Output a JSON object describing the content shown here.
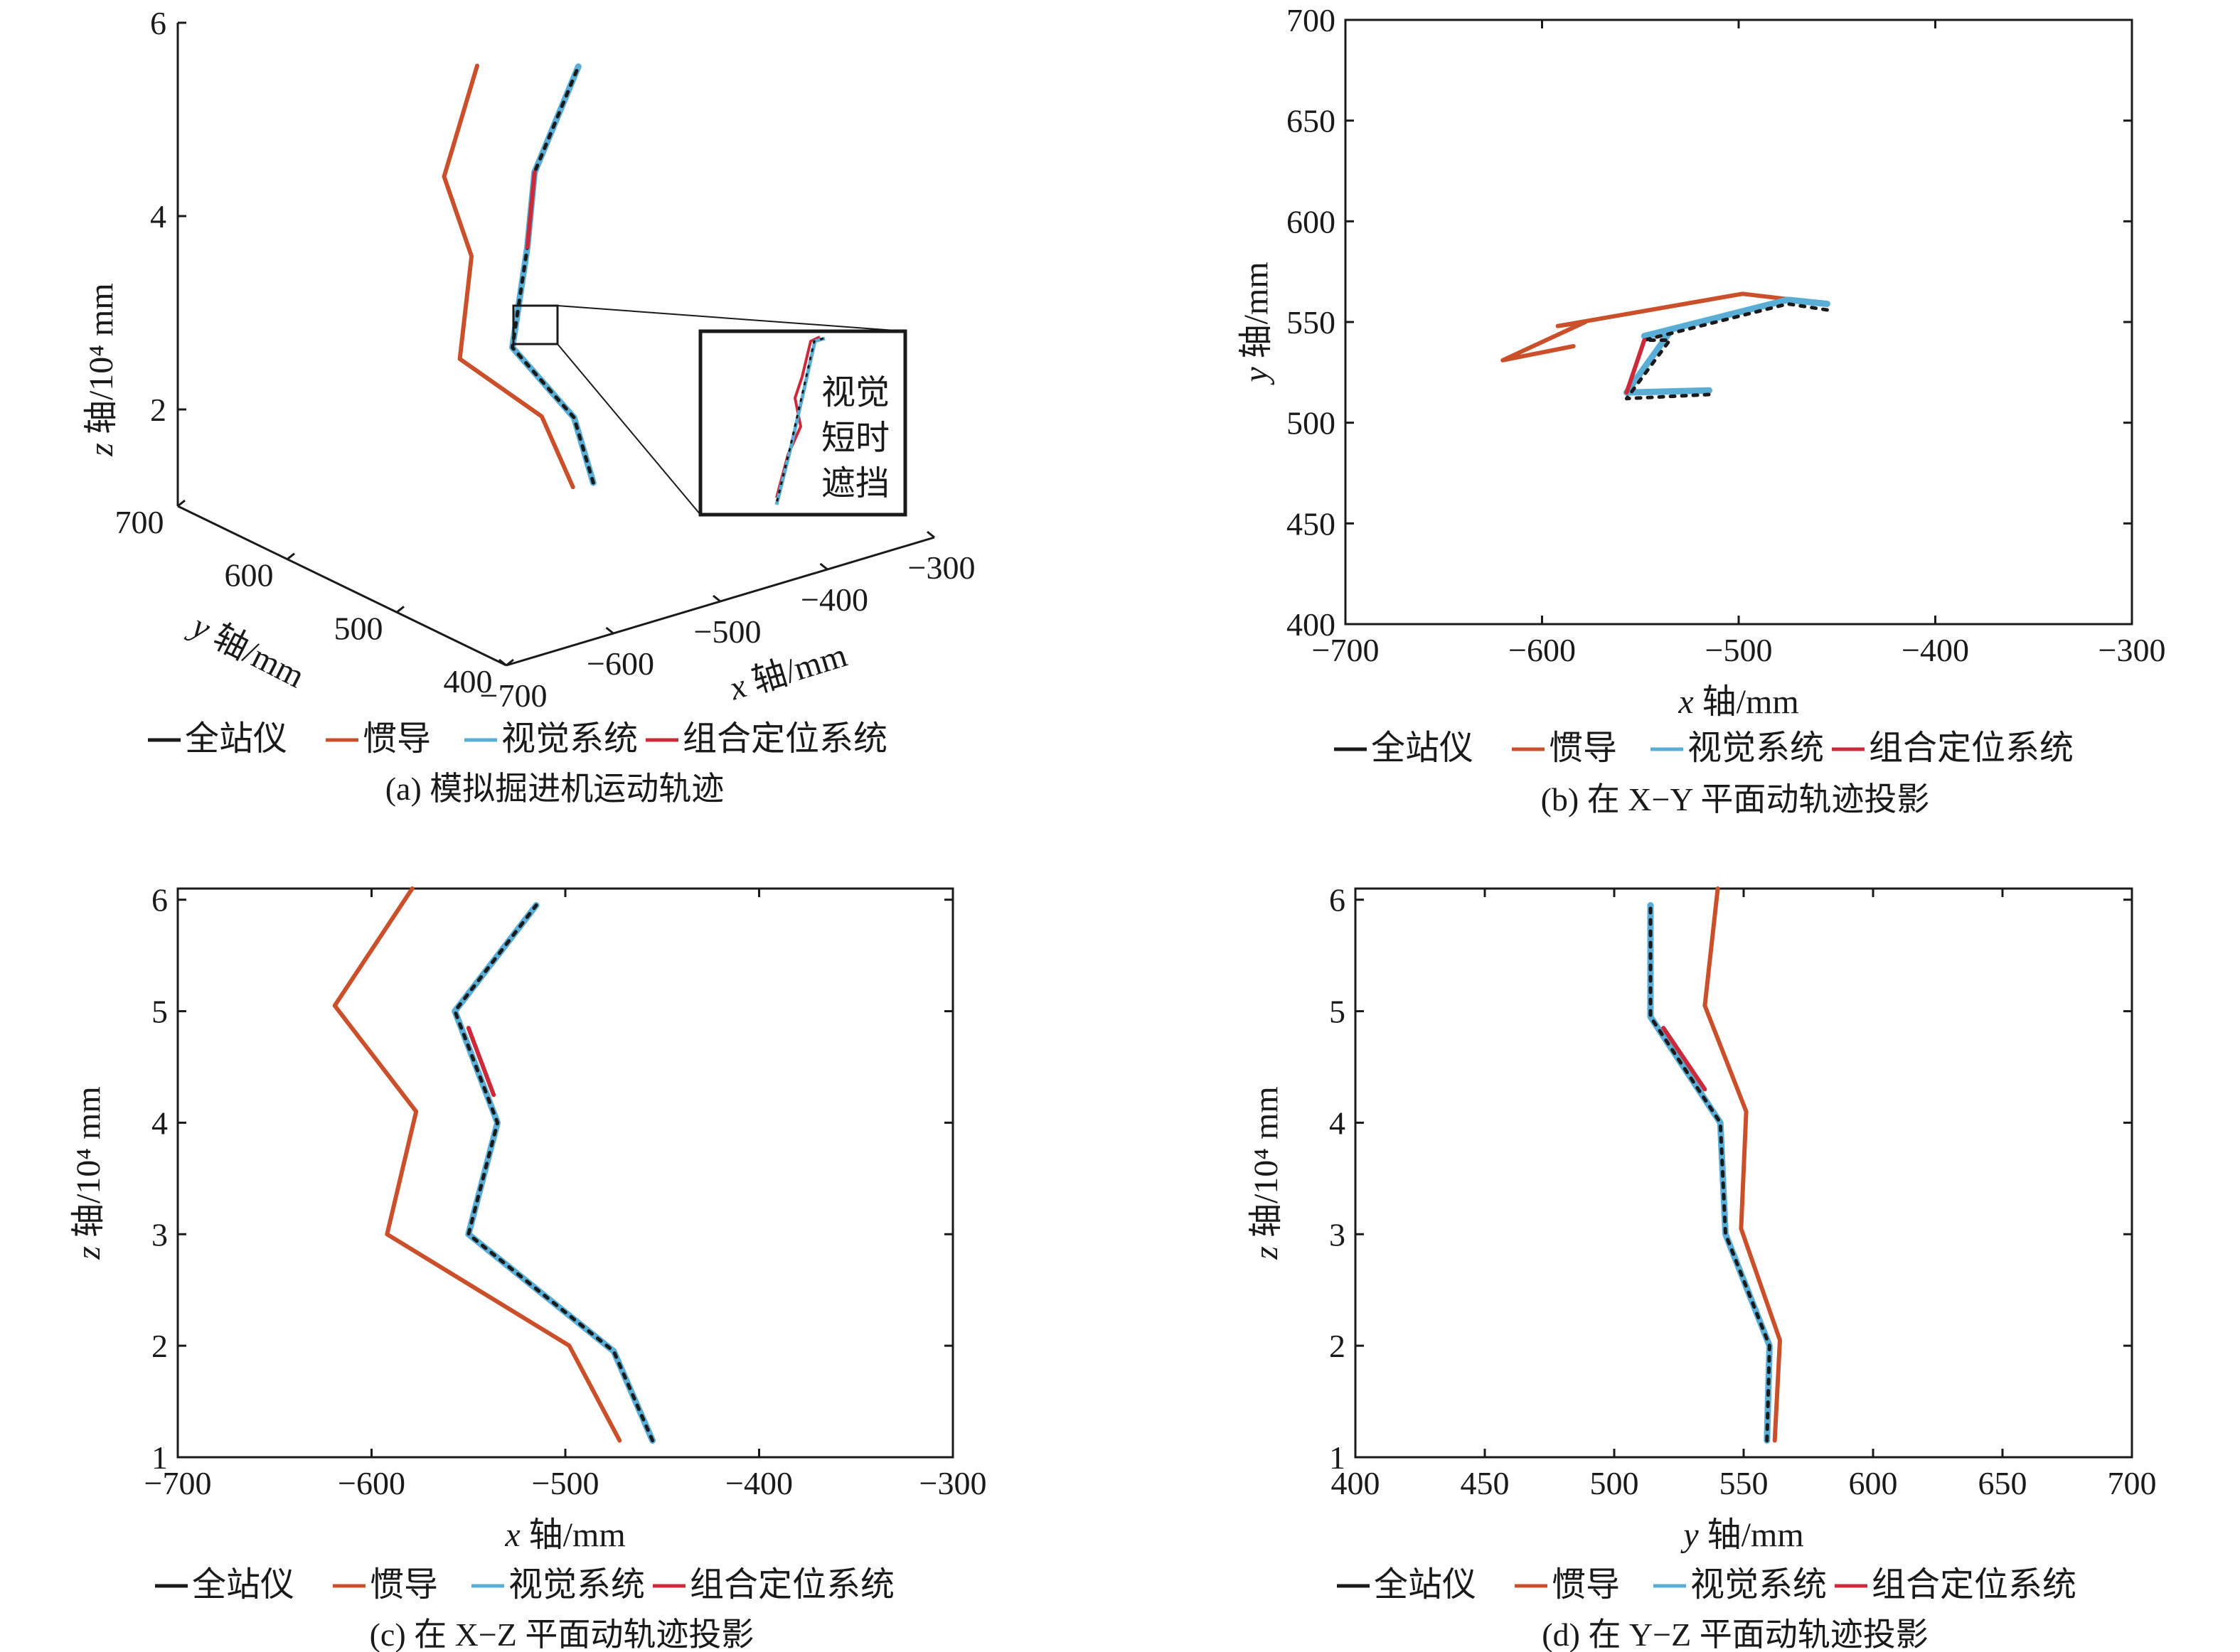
{
  "legend": [
    "全站仪",
    "惯导",
    "视觉系统",
    "组合定位系统"
  ],
  "colors": {
    "total_station": "#1a1a1a",
    "ins": "#c9502a",
    "vision": "#5aaed6",
    "integrated": "#cc2a3a"
  },
  "inset_note": [
    "视觉",
    "短时",
    "遮挡"
  ],
  "chart_data": [
    {
      "id": "a",
      "type": "line",
      "caption": "(a) 模拟掘进机运动轨迹",
      "xlabel": "x 轴/mm",
      "ylabel": "y 轴/mm",
      "zlabel": "z 轴/10⁴ mm",
      "xlim": [
        -700,
        -300
      ],
      "ylim": [
        400,
        700
      ],
      "zlim": [
        1,
        6
      ],
      "xticks": [
        "−700",
        "−600",
        "−500",
        "−400",
        "−300"
      ],
      "yticks": [
        "400",
        "500",
        "600",
        "700"
      ],
      "zticks": [
        "2",
        "4",
        "6"
      ],
      "series": [
        {
          "name": "全站仪",
          "x": [
            -455,
            -475,
            -548,
            -535,
            -557,
            -515
          ],
          "y": [
            560,
            558,
            543,
            542,
            514,
            515
          ],
          "z": [
            1.2,
            1.95,
            3.0,
            4.0,
            5.0,
            5.95
          ]
        },
        {
          "name": "惯导",
          "x": [
            -472,
            -498,
            -592,
            -578,
            -620,
            -584
          ],
          "y": [
            562,
            565,
            548,
            551,
            535,
            540
          ],
          "z": [
            1.2,
            2.0,
            3.0,
            4.0,
            5.05,
            6.05
          ]
        },
        {
          "name": "视觉系统",
          "x": [
            -455,
            -475,
            -548,
            -535,
            -557,
            -515
          ],
          "y": [
            560,
            558,
            543,
            542,
            514,
            515
          ],
          "z": [
            1.2,
            1.95,
            3.0,
            4.0,
            5.0,
            5.95
          ]
        },
        {
          "name": "组合定位系统",
          "x": [
            -535,
            -557
          ],
          "y": [
            542,
            514
          ],
          "z": [
            4.0,
            5.0
          ]
        }
      ]
    },
    {
      "id": "b",
      "type": "line",
      "caption": "(b) 在 X−Y 平面动轨迹投影",
      "xlabel": "x 轴/mm",
      "ylabel": "y 轴/mm",
      "xlim": [
        -700,
        -300
      ],
      "ylim": [
        400,
        700
      ],
      "xticks": [
        "−700",
        "−600",
        "−500",
        "−400",
        "−300"
      ],
      "yticks": [
        "400",
        "450",
        "500",
        "550",
        "600",
        "650",
        "700"
      ],
      "series": [
        {
          "name": "全站仪",
          "x": [
            -455,
            -475,
            -548,
            -535,
            -557,
            -515
          ],
          "y": [
            556,
            559,
            541,
            541,
            512,
            514
          ]
        },
        {
          "name": "惯导",
          "x": [
            -472,
            -498,
            -592,
            -578,
            -620,
            -584
          ],
          "y": [
            561,
            564,
            548,
            550,
            531,
            538
          ]
        },
        {
          "name": "视觉系统",
          "x": [
            -455,
            -475,
            -548,
            -535,
            -557,
            -515
          ],
          "y": [
            559,
            561,
            543,
            545,
            515,
            516
          ]
        },
        {
          "name": "组合定位系统",
          "x": [
            -548,
            -557
          ],
          "y": [
            541,
            515
          ]
        }
      ]
    },
    {
      "id": "c",
      "type": "line",
      "caption": "(c) 在 X−Z 平面动轨迹投影",
      "xlabel": "x 轴/mm",
      "ylabel": "z 轴/10⁴ mm",
      "xlim": [
        -700,
        -300
      ],
      "ylim": [
        1,
        6.1
      ],
      "xticks": [
        "−700",
        "−600",
        "−500",
        "−400",
        "−300"
      ],
      "yticks": [
        "1",
        "2",
        "3",
        "4",
        "5",
        "6"
      ],
      "series": [
        {
          "name": "全站仪",
          "x": [
            -455,
            -475,
            -550,
            -535,
            -557,
            -515
          ],
          "y": [
            1.15,
            1.95,
            3.0,
            4.0,
            5.0,
            5.95
          ]
        },
        {
          "name": "惯导",
          "x": [
            -472,
            -498,
            -592,
            -577,
            -619,
            -579
          ],
          "y": [
            1.15,
            2.0,
            3.0,
            4.1,
            5.05,
            6.1
          ]
        },
        {
          "name": "视觉系统",
          "x": [
            -455,
            -475,
            -550,
            -535,
            -557,
            -515
          ],
          "y": [
            1.15,
            1.95,
            3.0,
            4.0,
            5.0,
            5.95
          ]
        },
        {
          "name": "组合定位系统",
          "x": [
            -537,
            -550
          ],
          "y": [
            4.25,
            4.85
          ]
        }
      ]
    },
    {
      "id": "d",
      "type": "line",
      "caption": "(d) 在 Y−Z 平面动轨迹投影",
      "xlabel": "y 轴/mm",
      "ylabel": "z 轴/10⁴ mm",
      "xlim": [
        400,
        700
      ],
      "ylim": [
        1,
        6.1
      ],
      "xticks": [
        "400",
        "450",
        "500",
        "550",
        "600",
        "650",
        "700"
      ],
      "yticks": [
        "1",
        "2",
        "3",
        "4",
        "5",
        "6"
      ],
      "series": [
        {
          "name": "全站仪",
          "x": [
            559,
            560,
            543,
            541,
            514,
            514
          ],
          "y": [
            1.15,
            2.0,
            3.0,
            4.0,
            4.95,
            5.95
          ]
        },
        {
          "name": "惯导",
          "x": [
            562,
            564,
            549,
            551,
            535,
            540
          ],
          "y": [
            1.15,
            2.05,
            3.05,
            4.1,
            5.05,
            6.1
          ]
        },
        {
          "name": "视觉系统",
          "x": [
            559,
            560,
            543,
            541,
            514,
            514
          ],
          "y": [
            1.15,
            2.0,
            3.0,
            4.0,
            4.95,
            5.95
          ]
        },
        {
          "name": "组合定位系统",
          "x": [
            535,
            519
          ],
          "y": [
            4.3,
            4.85
          ]
        }
      ]
    }
  ]
}
